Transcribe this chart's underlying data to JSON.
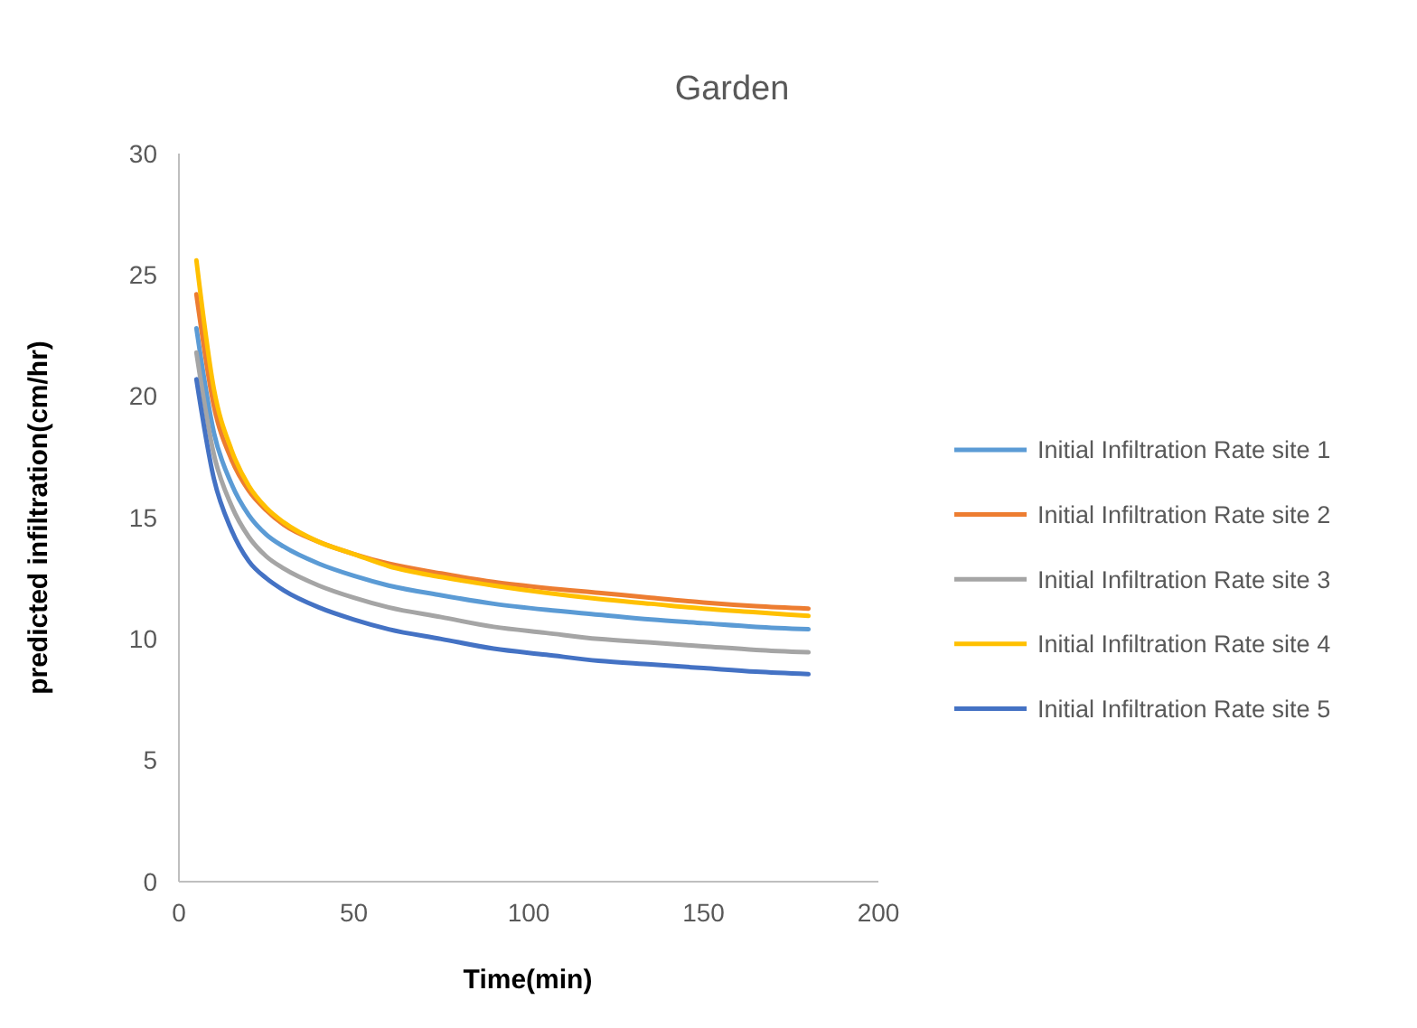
{
  "chart_data": {
    "type": "line",
    "title": "Garden",
    "xlabel": "Time(min)",
    "ylabel": "predicted infiltration(cm/hr)",
    "x": [
      5,
      10,
      15,
      20,
      25,
      30,
      40,
      50,
      60,
      75,
      90,
      105,
      120,
      135,
      150,
      165,
      180
    ],
    "xlim": [
      0,
      200
    ],
    "xticks": [
      0,
      50,
      100,
      150,
      200
    ],
    "ylim": [
      0,
      30
    ],
    "yticks": [
      0,
      5,
      10,
      15,
      20,
      25,
      30
    ],
    "grid": false,
    "legend": "right",
    "marker": "none",
    "line_style": "solid",
    "series": [
      {
        "name": "Initial Infiltration Rate site 1",
        "color": "#5b9bd5",
        "values": [
          22.8,
          18.5,
          16.4,
          15.1,
          14.3,
          13.8,
          13.1,
          12.6,
          12.2,
          11.8,
          11.45,
          11.2,
          11.0,
          10.8,
          10.65,
          10.5,
          10.4
        ]
      },
      {
        "name": "Initial Infiltration Rate site 2",
        "color": "#ed7d31",
        "values": [
          24.2,
          19.6,
          17.4,
          16.1,
          15.3,
          14.7,
          14.0,
          13.5,
          13.1,
          12.7,
          12.35,
          12.1,
          11.9,
          11.7,
          11.5,
          11.35,
          11.25
        ]
      },
      {
        "name": "Initial Infiltration Rate site 3",
        "color": "#a5a5a5",
        "values": [
          21.8,
          17.6,
          15.5,
          14.2,
          13.4,
          12.9,
          12.2,
          11.7,
          11.3,
          10.9,
          10.5,
          10.25,
          10.0,
          9.85,
          9.7,
          9.55,
          9.45
        ]
      },
      {
        "name": "Initial Infiltration Rate site 4",
        "color": "#ffc000",
        "values": [
          25.6,
          20.3,
          17.8,
          16.3,
          15.4,
          14.8,
          14.0,
          13.5,
          13.0,
          12.55,
          12.2,
          11.9,
          11.65,
          11.45,
          11.25,
          11.1,
          10.95
        ]
      },
      {
        "name": "Initial Infiltration Rate site 5",
        "color": "#4472c4",
        "values": [
          20.7,
          16.6,
          14.5,
          13.2,
          12.5,
          12.0,
          11.3,
          10.8,
          10.4,
          10.0,
          9.6,
          9.35,
          9.1,
          8.95,
          8.8,
          8.65,
          8.55
        ]
      }
    ]
  }
}
